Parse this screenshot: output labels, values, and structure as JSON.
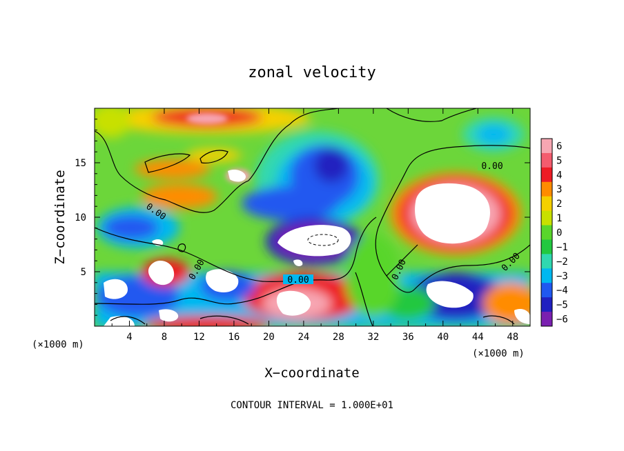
{
  "chart_data": {
    "type": "heatmap",
    "title": "zonal velocity",
    "xlabel": "X−coordinate",
    "ylabel": "Z−coordinate",
    "x_unit_left": "(×1000 m)",
    "x_unit_right": "(×1000 m)",
    "footer": "CONTOUR INTERVAL = 1.000E+01",
    "xlim": [
      0,
      50
    ],
    "ylim": [
      0,
      20
    ],
    "x_ticks": [
      "4",
      "8",
      "12",
      "16",
      "20",
      "24",
      "28",
      "32",
      "36",
      "40",
      "44",
      "48"
    ],
    "y_ticks": [
      "5",
      "10",
      "15"
    ],
    "colorbar": {
      "labels": [
        "6",
        "5",
        "4",
        "3",
        "2",
        "1",
        "0",
        "−1",
        "−2",
        "−3",
        "−4",
        "−5",
        "−6"
      ],
      "colors": [
        "#f7a6b2",
        "#f45c6e",
        "#ee1c24",
        "#ff8c00",
        "#f5d000",
        "#c8e000",
        "#59d62b",
        "#22c840",
        "#30d8b0",
        "#00b8f0",
        "#2058f0",
        "#2020c0",
        "#7a20b0"
      ]
    },
    "contour_labels": [
      "0.00",
      "0.00",
      "0.00",
      "0.00",
      "0.00",
      "0.00"
    ]
  }
}
